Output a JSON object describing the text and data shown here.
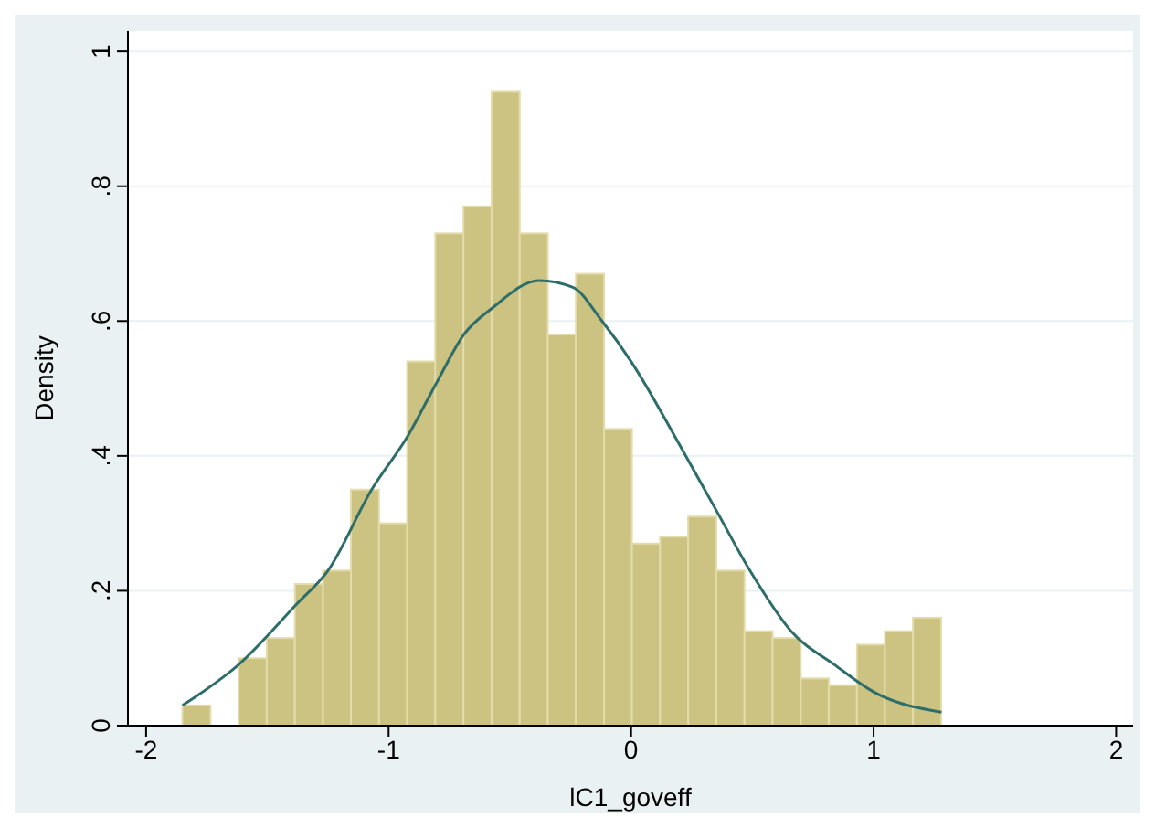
{
  "chart_data": {
    "type": "histogram",
    "xlabel": "lC1_goveff",
    "ylabel": "Density",
    "bins": [
      -1.85,
      -1.734,
      -1.618,
      -1.502,
      -1.386,
      -1.27,
      -1.155,
      -1.039,
      -0.923,
      -0.807,
      -0.691,
      -0.575,
      -0.459,
      -0.343,
      -0.227,
      -0.111,
      0.004,
      0.12,
      0.236,
      0.352,
      0.468,
      0.584,
      0.7,
      0.816,
      0.932,
      1.047,
      1.163,
      1.279
    ],
    "values": [
      0.03,
      0,
      0.1,
      0.13,
      0.21,
      0.23,
      0.35,
      0.3,
      0.54,
      0.73,
      0.77,
      0.94,
      0.73,
      0.58,
      0.67,
      0.44,
      0.27,
      0.28,
      0.31,
      0.23,
      0.14,
      0.13,
      0.07,
      0.06,
      0.12,
      0.14,
      0.16
    ],
    "color": "#ccc383",
    "series": [
      {
        "type": "line",
        "color": "#2e6e6a",
        "x": [
          -1.85,
          -1.62,
          -1.38,
          -1.25,
          -1.07,
          -0.92,
          -0.8,
          -0.69,
          -0.57,
          -0.38,
          -0.24,
          -0.12,
          0,
          0.21,
          0.35,
          0.49,
          0.66,
          0.84,
          1.0,
          1.28
        ],
        "values": [
          0.03,
          0.09,
          0.18,
          0.23,
          0.35,
          0.43,
          0.51,
          0.58,
          0.62,
          0.66,
          0.65,
          0.6,
          0.54,
          0.41,
          0.32,
          0.23,
          0.14,
          0.09,
          0.05,
          0.02
        ]
      }
    ],
    "xlim": [
      -2.075,
      2.07
    ],
    "ylim": [
      0,
      1.03
    ],
    "xticks": [
      -2,
      -1,
      0,
      1,
      2
    ],
    "yticks": [
      {
        "value": 0,
        "label": "0"
      },
      {
        "value": 0.2,
        "label": ".2"
      },
      {
        "value": 0.4,
        "label": ".4"
      },
      {
        "value": 0.6,
        "label": ".6"
      },
      {
        "value": 0.8,
        "label": ".8"
      },
      {
        "value": 1,
        "label": "1"
      }
    ],
    "grid": "y",
    "marker": "none"
  }
}
